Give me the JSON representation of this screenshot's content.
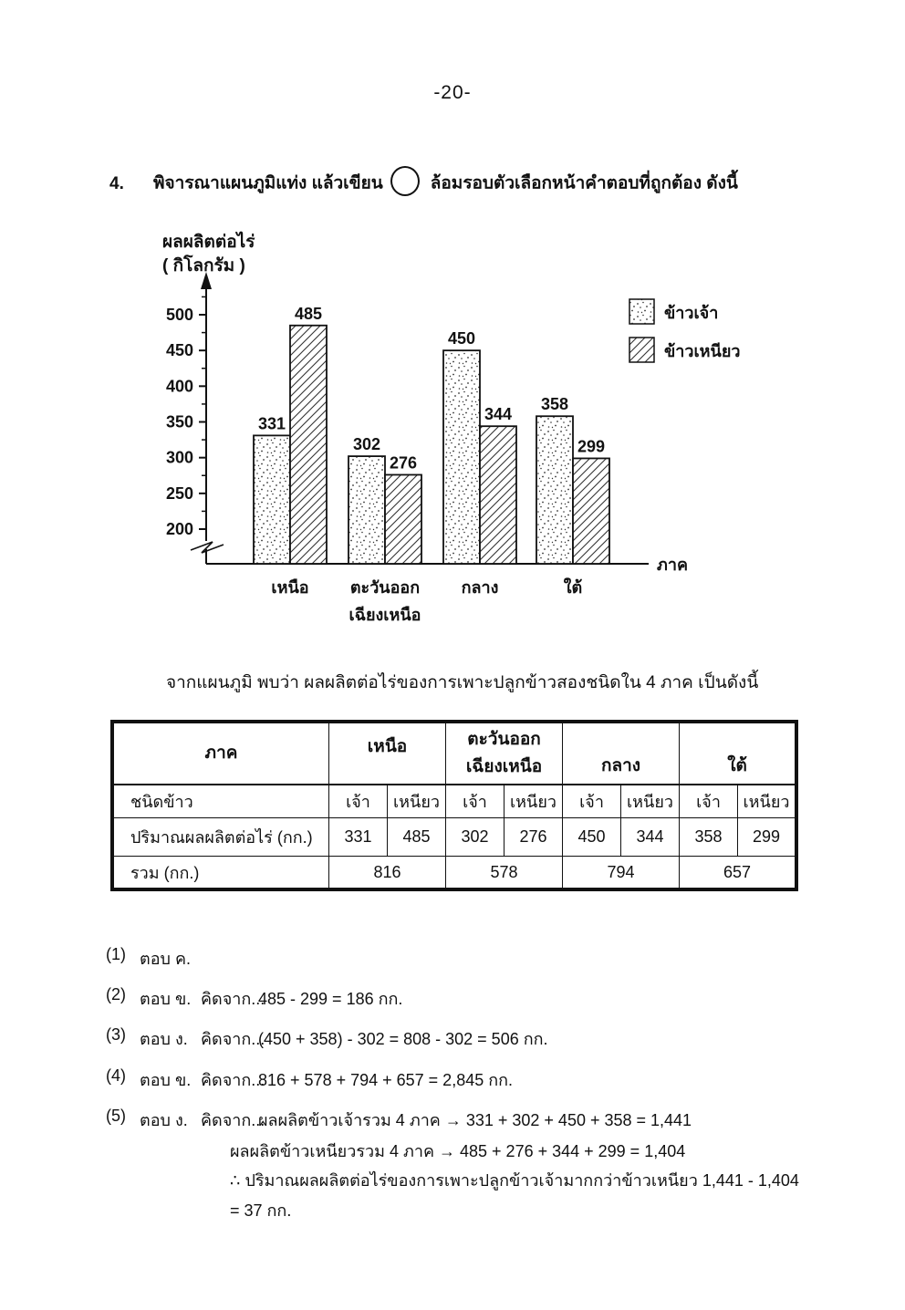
{
  "page": {
    "number_label": "-20-"
  },
  "question": {
    "number": "4.",
    "text_before_circle": "พิจารณาแผนภูมิแท่ง แล้วเขียน",
    "text_after_circle": "ล้อมรอบตัวเลือกหน้าคำตอบที่ถูกต้อง ดังนี้"
  },
  "chart_data": {
    "type": "bar",
    "title": "",
    "ylabel_line1": "ผลผลิตต่อไร่",
    "ylabel_line2": "( กิโลกรัม )",
    "xlabel": "ภาค",
    "categories": [
      "เหนือ",
      "ตะวันออกเฉียงเหนือ",
      "กลาง",
      "ใต้"
    ],
    "category_label_lines": [
      [
        "เหนือ"
      ],
      [
        "ตะวันออก",
        "เฉียงเหนือ"
      ],
      [
        "กลาง"
      ],
      [
        "ใต้"
      ]
    ],
    "series": [
      {
        "name": "ข้าวเจ้า",
        "pattern": "dots",
        "values": [
          331,
          302,
          450,
          358
        ]
      },
      {
        "name": "ข้าวเหนียว",
        "pattern": "diagonal-hatch",
        "values": [
          485,
          276,
          344,
          299
        ]
      }
    ],
    "yticks": [
      200,
      250,
      300,
      350,
      400,
      450,
      500
    ],
    "ylim": [
      200,
      500
    ],
    "axis_break": true,
    "grid": false,
    "legend_position": "top-right",
    "bar_value_labels": [
      331,
      485,
      302,
      276,
      450,
      344,
      358,
      299
    ]
  },
  "intro_text": "จากแผนภูมิ พบว่า ผลผลิตต่อไร่ของการเพาะปลูกข้าวสองชนิดใน 4 ภาค เป็นดังนี้",
  "table": {
    "corner_label": "ภาค",
    "regions": {
      "north": "เหนือ",
      "northeast_line1": "ตะวันออก",
      "northeast_line2": "เฉียงเหนือ",
      "central": "กลาง",
      "south": "ใต้"
    },
    "type_row": {
      "label": "ชนิดข้าว",
      "types": [
        "เจ้า",
        "เหนียว",
        "เจ้า",
        "เหนียว",
        "เจ้า",
        "เหนียว",
        "เจ้า",
        "เหนียว"
      ]
    },
    "amount_row": {
      "label": "ปริมาณผลผลิตต่อไร่ (กก.)",
      "values": [
        "331",
        "485",
        "302",
        "276",
        "450",
        "344",
        "358",
        "299"
      ]
    },
    "total_row": {
      "label": "รวม (กก.)",
      "values": [
        "816",
        "578",
        "794",
        "657"
      ]
    }
  },
  "answers": [
    {
      "no": "(1)",
      "answer_word": "ตอบ",
      "choice": "ค.",
      "method_label": "",
      "lines": []
    },
    {
      "no": "(2)",
      "answer_word": "ตอบ",
      "choice": "ข.",
      "method_label": "คิดจาก...",
      "lines": [
        "485 - 299 = 186 กก."
      ]
    },
    {
      "no": "(3)",
      "answer_word": "ตอบ",
      "choice": "ง.",
      "method_label": "คิดจาก...",
      "lines": [
        "(450 + 358) - 302 = 808 - 302 = 506 กก."
      ]
    },
    {
      "no": "(4)",
      "answer_word": "ตอบ",
      "choice": "ข.",
      "method_label": "คิดจาก...",
      "lines": [
        "816 + 578 + 794 + 657 = 2,845 กก."
      ]
    },
    {
      "no": "(5)",
      "answer_word": "ตอบ",
      "choice": "ง.",
      "method_label": "คิดจาก...",
      "lines": [
        "ผลผลิตข้าวเจ้ารวม 4 ภาค → 331 + 302 + 450 + 358 = 1,441",
        "ผลผลิตข้าวเหนียวรวม 4 ภาค → 485 + 276 + 344 + 299 = 1,404",
        "∴ ปริมาณผลผลิตต่อไร่ของการเพาะปลูกข้าวเจ้ามากกว่าข้าวเหนียว 1,441 - 1,404",
        "= 37 กก."
      ]
    }
  ]
}
